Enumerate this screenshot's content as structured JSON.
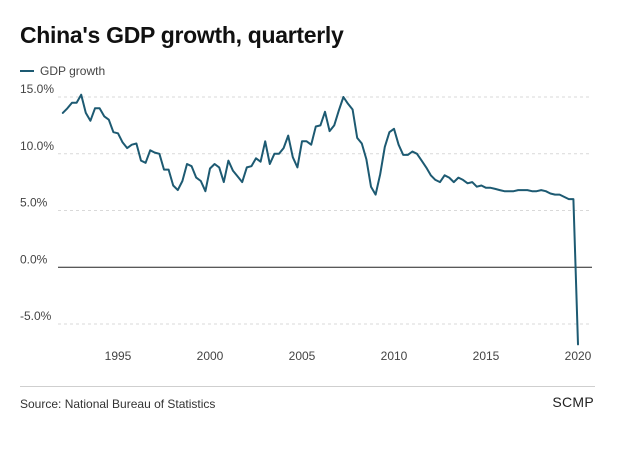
{
  "chart_data": {
    "type": "line",
    "title": "China's GDP growth, quarterly",
    "xlabel": "",
    "ylabel": "",
    "xlim": [
      1992,
      2020.4
    ],
    "ylim": [
      -7.5,
      16
    ],
    "x_ticks": [
      1995,
      2000,
      2005,
      2010,
      2015,
      2020
    ],
    "x_tick_labels": [
      "1995",
      "2000",
      "2005",
      "2010",
      "2015",
      "2020"
    ],
    "y_ticks": [
      15,
      10,
      5,
      0,
      -5
    ],
    "y_tick_labels": [
      "15.0%",
      "10.0%",
      "5.0%",
      "0.0%",
      "-5.0%"
    ],
    "grid": "horizontal-dashed",
    "legend_position": "top-left",
    "series": [
      {
        "name": "GDP growth",
        "color": "#1d5a72",
        "x": [
          1992.0,
          1992.25,
          1992.5,
          1992.75,
          1993.0,
          1993.25,
          1993.5,
          1993.75,
          1994.0,
          1994.25,
          1994.5,
          1994.75,
          1995.0,
          1995.25,
          1995.5,
          1995.75,
          1996.0,
          1996.25,
          1996.5,
          1996.75,
          1997.0,
          1997.25,
          1997.5,
          1997.75,
          1998.0,
          1998.25,
          1998.5,
          1998.75,
          1999.0,
          1999.25,
          1999.5,
          1999.75,
          2000.0,
          2000.25,
          2000.5,
          2000.75,
          2001.0,
          2001.25,
          2001.5,
          2001.75,
          2002.0,
          2002.25,
          2002.5,
          2002.75,
          2003.0,
          2003.25,
          2003.5,
          2003.75,
          2004.0,
          2004.25,
          2004.5,
          2004.75,
          2005.0,
          2005.25,
          2005.5,
          2005.75,
          2006.0,
          2006.25,
          2006.5,
          2006.75,
          2007.0,
          2007.25,
          2007.5,
          2007.75,
          2008.0,
          2008.25,
          2008.5,
          2008.75,
          2009.0,
          2009.25,
          2009.5,
          2009.75,
          2010.0,
          2010.25,
          2010.5,
          2010.75,
          2011.0,
          2011.25,
          2011.5,
          2011.75,
          2012.0,
          2012.25,
          2012.5,
          2012.75,
          2013.0,
          2013.25,
          2013.5,
          2013.75,
          2014.0,
          2014.25,
          2014.5,
          2014.75,
          2015.0,
          2015.25,
          2015.5,
          2015.75,
          2016.0,
          2016.25,
          2016.5,
          2016.75,
          2017.0,
          2017.25,
          2017.5,
          2017.75,
          2018.0,
          2018.25,
          2018.5,
          2018.75,
          2019.0,
          2019.25,
          2019.5,
          2019.75,
          2020.0
        ],
        "values": [
          13.6,
          14.0,
          14.5,
          14.5,
          15.2,
          13.6,
          12.9,
          14.0,
          14.0,
          13.3,
          13.0,
          11.9,
          11.8,
          11.0,
          10.5,
          10.8,
          10.9,
          9.4,
          9.2,
          10.3,
          10.1,
          10.0,
          8.6,
          8.6,
          7.2,
          6.8,
          7.6,
          9.1,
          8.9,
          7.9,
          7.6,
          6.7,
          8.7,
          9.1,
          8.8,
          7.5,
          9.4,
          8.5,
          8.0,
          7.5,
          8.8,
          8.9,
          9.6,
          9.3,
          11.1,
          9.1,
          10.0,
          10.0,
          10.5,
          11.6,
          9.7,
          8.8,
          11.1,
          11.1,
          10.8,
          12.4,
          12.5,
          13.7,
          12.0,
          12.5,
          13.8,
          15.0,
          14.4,
          13.9,
          11.4,
          10.9,
          9.5,
          7.1,
          6.4,
          8.2,
          10.6,
          11.9,
          12.2,
          10.8,
          9.9,
          9.9,
          10.2,
          10.0,
          9.4,
          8.8,
          8.1,
          7.7,
          7.5,
          8.1,
          7.9,
          7.5,
          7.9,
          7.7,
          7.4,
          7.5,
          7.1,
          7.2,
          7.0,
          7.0,
          6.9,
          6.8,
          6.7,
          6.7,
          6.7,
          6.8,
          6.8,
          6.8,
          6.7,
          6.7,
          6.8,
          6.7,
          6.5,
          6.4,
          6.4,
          6.2,
          6.0,
          6.0,
          -6.8
        ]
      }
    ]
  },
  "legend": {
    "label": "GDP growth"
  },
  "footer": {
    "source": "Source: National Bureau of Statistics",
    "brand": "SCMP"
  }
}
